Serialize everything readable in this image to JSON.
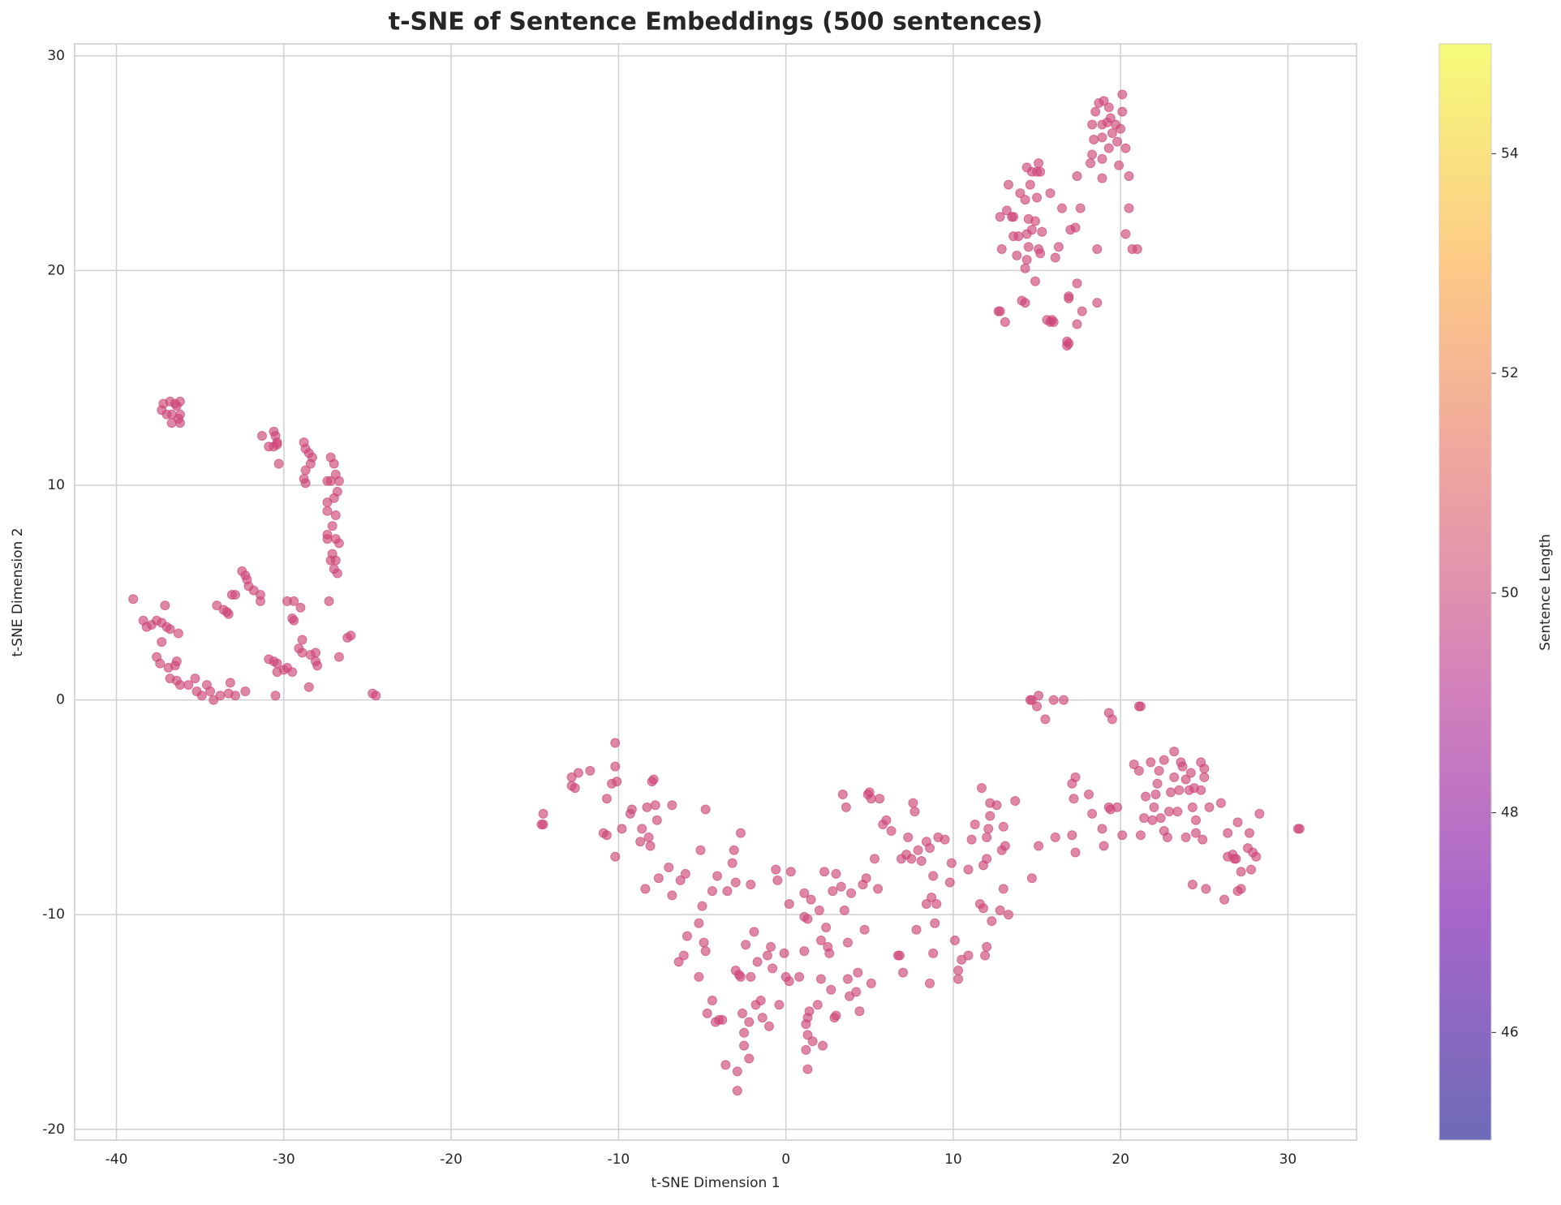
{
  "chart_data": {
    "type": "scatter",
    "title": "t-SNE of Sentence Embeddings (500 sentences)",
    "xlabel": "t-SNE Dimension 1",
    "ylabel": "t-SNE Dimension 2",
    "xlim": [
      -42.5,
      34.1
    ],
    "ylim": [
      -20.5,
      30.56
    ],
    "xticks": [
      -40,
      -30,
      -20,
      -10,
      0,
      10,
      20,
      30
    ],
    "yticks": [
      -20,
      -10,
      0,
      10,
      20,
      30
    ],
    "grid": true,
    "color": "#cc4778",
    "alpha": 0.65,
    "colorbar": {
      "label": "Sentence Length",
      "lim": [
        45.02,
        55
      ],
      "ticks": [
        46,
        48,
        50,
        52,
        54
      ],
      "colors": [
        "#0d0887",
        "#6a00a8",
        "#b12a90",
        "#e16462",
        "#fca636",
        "#f0f921"
      ]
    },
    "x": [
      -37.2,
      -36.8,
      -36.5,
      -36.2,
      -37.3,
      -37,
      -36.7,
      -36.2,
      -36.7,
      -36.2,
      -36.4,
      -36.3,
      -39,
      -38.4,
      -38.2,
      -37.9,
      -37.6,
      -37.3,
      -37,
      -36.8,
      -36.3,
      -37.1,
      -37.6,
      -37.3,
      -37.4,
      -36.9,
      -36.5,
      -36.4,
      -36.8,
      -36.4,
      -36.2,
      -35.7,
      -35.3,
      -35.2,
      -34.9,
      -34.6,
      -34.4,
      -34.2,
      -33.8,
      -33.3,
      -33.2,
      -32.9,
      -32.3,
      -34,
      -33.6,
      -33.4,
      -33.3,
      -33.1,
      -32.9,
      -32.5,
      -32.3,
      -32.2,
      -32.1,
      -31.8,
      -31.4,
      -31.4,
      -31.3,
      -30.9,
      -30.6,
      -30.4,
      -30.4,
      -30.5,
      -30,
      -29.8,
      -29.5,
      -29.8,
      -29.4,
      -29.5,
      -29.4,
      -29,
      -29.1,
      -28.9,
      -28.9,
      -28.5,
      -28.4,
      -28.1,
      -28.1,
      -28,
      -26.7,
      -26.2,
      -26,
      -24.7,
      -24.5,
      -30.6,
      -30.5,
      -30.4,
      -30.9,
      -30.6,
      -30.4,
      -30.3,
      -28.8,
      -28.7,
      -28.5,
      -28.3,
      -28.4,
      -28.7,
      -28.8,
      -28.7,
      -27.4,
      -27.2,
      -27.2,
      -27,
      -26.9,
      -26.7,
      -26.8,
      -27,
      -27.4,
      -27.4,
      -26.9,
      -27.1,
      -27.4,
      -27.4,
      -26.9,
      -26.7,
      -27.1,
      -26.9,
      -27.2,
      -27,
      -26.8,
      -27.3,
      20.1,
      19,
      18.7,
      19.3,
      18.5,
      20.1,
      19.4,
      18.9,
      18.3,
      19.2,
      19.7,
      20,
      19.5,
      18.9,
      18.4,
      19.8,
      19.3,
      20.3,
      18.3,
      18.9,
      18.2,
      19.9,
      15.1,
      14.4,
      14.7,
      15,
      15.2,
      18.9,
      17.4,
      20.5,
      13.3,
      14.6,
      14,
      15.8,
      14.3,
      15,
      16.5,
      17.6,
      20.5,
      13.2,
      12.8,
      13.5,
      13.6,
      14.5,
      14.9,
      17.3,
      17,
      14.4,
      14.7,
      15.3,
      13.6,
      13.9,
      20.3,
      12.9,
      14.5,
      15.1,
      16.3,
      18.6,
      20.7,
      21,
      13.8,
      14.4,
      15.2,
      16.1,
      14.3,
      14.9,
      17.4,
      16.9,
      16.9,
      18.6,
      14.1,
      14.3,
      12.7,
      12.8,
      17.7,
      13.1,
      15.6,
      15.9,
      15.8,
      16,
      17.4,
      16.8,
      16.8,
      16.9,
      14.6,
      14.7,
      15,
      15.1,
      15.5,
      16,
      16.6,
      19.3,
      19.5,
      21.1,
      21.2,
      -14.5,
      -14.5,
      -14.6,
      -12.8,
      -12.8,
      -12.6,
      -12.4,
      -11.7,
      -10.9,
      -10.7,
      -10.7,
      -10.4,
      -10.1,
      -10.2,
      -10.2,
      -10.2,
      -9.8,
      -9.2,
      -9.3,
      -8.7,
      -8.6,
      -8.3,
      -8.4,
      -8.2,
      -8.1,
      -8,
      -7.9,
      -7.8,
      -7.7,
      -7.6,
      -7,
      -6.8,
      -6.8,
      -6.4,
      -6.3,
      -6.1,
      -6,
      -5.9,
      -5.2,
      -5.2,
      -5.1,
      -5,
      -4.9,
      -4.8,
      -4.8,
      -4.7,
      -4.4,
      -4.4,
      -4.2,
      -4.1,
      -4,
      -3.8,
      -3.6,
      -3.5,
      -3.2,
      -3.1,
      -3,
      -3,
      -2.9,
      -2.9,
      -2.8,
      -2.7,
      -2.7,
      -2.6,
      -2.5,
      -2.5,
      -2.4,
      -2.2,
      -2.2,
      -2.1,
      -2.1,
      -1.9,
      -1.8,
      -1.7,
      -1.5,
      -1.4,
      -1.1,
      -1,
      -0.9,
      -0.8,
      -0.6,
      -0.5,
      -0.4,
      -0.1,
      0,
      0.2,
      0.2,
      0.3,
      0.8,
      1.1,
      1.1,
      1.1,
      1.2,
      1.2,
      1.3,
      1.3,
      1.3,
      1.4,
      1.3,
      1.5,
      1.6,
      1.9,
      2,
      2.1,
      2.1,
      2.2,
      2.3,
      2.4,
      2.5,
      2.6,
      2.7,
      2.8,
      2.9,
      3,
      3,
      3.3,
      3.4,
      3.5,
      3.6,
      3.7,
      3.7,
      3.8,
      3.9,
      4.2,
      4.3,
      4.4,
      4.6,
      4.7,
      4.8,
      4.9,
      5,
      5.1,
      5.1,
      5.3,
      5.5,
      5.6,
      5.8,
      6,
      6.3,
      6.7,
      6.8,
      6.9,
      7,
      7.2,
      7.3,
      7.5,
      7.6,
      7.7,
      7.8,
      7.9,
      8.1,
      8.4,
      8.4,
      8.6,
      8.6,
      8.7,
      8.8,
      8.8,
      8.9,
      9,
      9.1,
      9.5,
      9.8,
      9.9,
      10.1,
      10.3,
      10.3,
      10.5,
      10.9,
      10.9,
      11.1,
      11.3,
      11.6,
      11.7,
      11.8,
      11.8,
      11.9,
      12,
      12,
      12,
      12.1,
      12.2,
      12.2,
      12.3,
      12.6,
      12.8,
      12.9,
      13,
      13,
      13.1,
      13.3,
      13.7,
      14.7,
      15.1,
      16.1,
      17.1,
      17.1,
      17.2,
      17.3,
      17.3,
      18.1,
      18.3,
      18.9,
      19,
      19.3,
      19.4,
      19.8,
      20.1,
      20.8,
      21.1,
      21.2,
      21.4,
      21.5,
      21.8,
      21.9,
      22,
      22.1,
      22.2,
      22.4,
      22.3,
      22.6,
      22.6,
      22.8,
      22.9,
      23,
      23.2,
      23.2,
      23.4,
      23.5,
      23.6,
      23.7,
      23.9,
      23.9,
      24.1,
      24.2,
      24.3,
      24.3,
      24.4,
      24.5,
      24.5,
      24.8,
      24.8,
      24.9,
      25,
      25,
      25.1,
      25.3,
      26,
      26.2,
      26.4,
      26.4,
      26.7,
      26.8,
      26.9,
      27,
      27,
      27.2,
      27.2,
      27.6,
      27.7,
      27.8,
      27.9,
      28.1,
      28.3,
      30.6,
      30.7
    ],
    "values": [
      13.8,
      13.9,
      13.8,
      13.9,
      13.5,
      13.3,
      13.3,
      13.3,
      12.9,
      12.9,
      13.7,
      13.1,
      4.7,
      3.7,
      3.4,
      3.5,
      3.7,
      3.6,
      3.4,
      3.3,
      3.1,
      4.4,
      2,
      2.7,
      1.7,
      1.5,
      1.6,
      1.8,
      1,
      0.9,
      0.7,
      0.7,
      1,
      0.4,
      0.2,
      0.7,
      0.4,
      0,
      0.2,
      0.3,
      0.8,
      0.2,
      0.4,
      4.4,
      4.2,
      4.1,
      4,
      4.9,
      4.9,
      6,
      5.8,
      5.6,
      5.3,
      5.1,
      4.9,
      4.6,
      12.3,
      1.9,
      1.8,
      1.7,
      1.3,
      0.2,
      1.4,
      1.5,
      1.3,
      4.6,
      4.6,
      3.8,
      3.7,
      4.3,
      2.4,
      2.8,
      2.2,
      0.6,
      2.1,
      2.2,
      1.8,
      1.6,
      2,
      2.9,
      3,
      0.3,
      0.2,
      12.5,
      12.3,
      12,
      11.8,
      11.8,
      11.9,
      11,
      12,
      11.7,
      11.5,
      11.3,
      11,
      10.7,
      10.3,
      10.1,
      10.2,
      10.2,
      11.3,
      11,
      10.5,
      10.2,
      9.7,
      9.4,
      9.2,
      8.8,
      8.6,
      8.1,
      7.7,
      7.5,
      7.5,
      7.3,
      6.8,
      6.5,
      6.5,
      6.1,
      5.9,
      4.6,
      28.2,
      27.9,
      27.8,
      27.6,
      27.4,
      27.4,
      27.1,
      26.8,
      26.8,
      26.9,
      26.8,
      26.6,
      26.4,
      26.2,
      26.1,
      26,
      25.7,
      25.7,
      25.4,
      25.2,
      25,
      24.9,
      25,
      24.8,
      24.6,
      24.6,
      24.6,
      24.3,
      24.4,
      24.4,
      24,
      24,
      23.6,
      23.6,
      23.3,
      23.4,
      22.9,
      22.9,
      22.9,
      22.8,
      22.5,
      22.5,
      22.5,
      22.4,
      22.3,
      22,
      21.9,
      21.7,
      21.9,
      21.8,
      21.6,
      21.6,
      21.7,
      21,
      21.1,
      21,
      21.1,
      21,
      21,
      21,
      20.7,
      20.5,
      20.8,
      20.6,
      20.1,
      19.5,
      19.4,
      18.8,
      18.7,
      18.5,
      18.6,
      18.5,
      18.1,
      18.1,
      18.1,
      17.6,
      17.7,
      17.7,
      17.6,
      17.6,
      17.5,
      16.7,
      16.5,
      16.6,
      0,
      0,
      -0.3,
      0.2,
      -0.9,
      0,
      0,
      -0.6,
      -0.9,
      -0.3,
      -0.3,
      -5.3,
      -5.8,
      -5.8,
      -3.6,
      -4,
      -4.1,
      -3.4,
      -3.3,
      -6.2,
      -6.3,
      -4.6,
      -3.9,
      -3.8,
      -3.1,
      -2,
      -7.3,
      -6,
      -5.1,
      -5.3,
      -6.6,
      -6,
      -5,
      -8.8,
      -6.4,
      -6.8,
      -3.8,
      -3.7,
      -4.9,
      -5.6,
      -8.3,
      -7.8,
      -4.9,
      -9.1,
      -12.2,
      -8.4,
      -11.9,
      -8.1,
      -11,
      -12.9,
      -10.4,
      -7,
      -9.6,
      -11.3,
      -11.7,
      -5.1,
      -14.6,
      -14,
      -8.9,
      -15,
      -8.2,
      -14.9,
      -14.9,
      -17,
      -8.9,
      -7.6,
      -7,
      -8.5,
      -12.6,
      -18.2,
      -17.3,
      -12.8,
      -12.9,
      -6.2,
      -14.6,
      -15.5,
      -16.1,
      -11.4,
      -15,
      -16.7,
      -12.9,
      -8.6,
      -10.8,
      -14.2,
      -12.2,
      -14,
      -14.8,
      -11.9,
      -15.2,
      -11.5,
      -12.5,
      -7.9,
      -8.4,
      -14.2,
      -11.8,
      -12.9,
      -13.1,
      -9.5,
      -8,
      -12.9,
      -11.7,
      -9,
      -10.1,
      -16.3,
      -15.1,
      -17.2,
      -15.6,
      -14.8,
      -14.5,
      -10.2,
      -9.3,
      -15.9,
      -14.2,
      -9.8,
      -11.2,
      -13,
      -16.1,
      -8,
      -10.6,
      -11.5,
      -11.8,
      -13.5,
      -8.9,
      -14.8,
      -14.7,
      -8.1,
      -8.7,
      -4.4,
      -9.8,
      -5,
      -11.3,
      -13,
      -13.8,
      -9,
      -13.6,
      -12.7,
      -14.5,
      -8.6,
      -10.7,
      -8.3,
      -4.4,
      -4.3,
      -13.2,
      -4.6,
      -7.4,
      -8.8,
      -4.6,
      -5.8,
      -5.6,
      -6.1,
      -11.9,
      -11.9,
      -7.4,
      -12.7,
      -7.2,
      -6.4,
      -7.4,
      -4.8,
      -5.2,
      -10.7,
      -7,
      -7.5,
      -6.6,
      -9.5,
      -13.2,
      -6.9,
      -9.2,
      -11.8,
      -8.2,
      -10.4,
      -9.5,
      -6.4,
      -6.5,
      -8.5,
      -7.6,
      -11.2,
      -12.6,
      -13,
      -12.1,
      -7.9,
      -11.9,
      -6.5,
      -5.8,
      -9.5,
      -4.1,
      -9.7,
      -7.7,
      -11.9,
      -11.5,
      -7.4,
      -6.4,
      -6,
      -5.4,
      -4.8,
      -10.3,
      -4.9,
      -9.8,
      -7,
      -5.9,
      -8.8,
      -6.8,
      -10,
      -4.7,
      -8.3,
      -6.8,
      -6.4,
      -3.9,
      -6.3,
      -4.6,
      -3.6,
      -7.1,
      -4.4,
      -5.3,
      -6,
      -6.8,
      -5,
      -5.1,
      -5,
      -6.3,
      -3,
      -3.3,
      -6.3,
      -5.5,
      -4.5,
      -2.9,
      -5.6,
      -5,
      -4.4,
      -3.9,
      -5.5,
      -3.3,
      -2.8,
      -6.1,
      -6.4,
      -5.2,
      -4.3,
      -2.4,
      -3.6,
      -5.2,
      -4.2,
      -2.9,
      -3.1,
      -3.7,
      -6.4,
      -4.2,
      -3.4,
      -5,
      -8.6,
      -4.1,
      -6.2,
      -5.6,
      -4.2,
      -2.9,
      -6.5,
      -3.6,
      -3.2,
      -8.8,
      -5,
      -4.8,
      -9.3,
      -6.2,
      -7.3,
      -7.2,
      -7.4,
      -7.4,
      -5.7,
      -8.9,
      -8,
      -8.8,
      -6.9,
      -6.2,
      -7.9,
      -7.1,
      -7.3,
      -5.3,
      -6,
      -6
    ]
  }
}
